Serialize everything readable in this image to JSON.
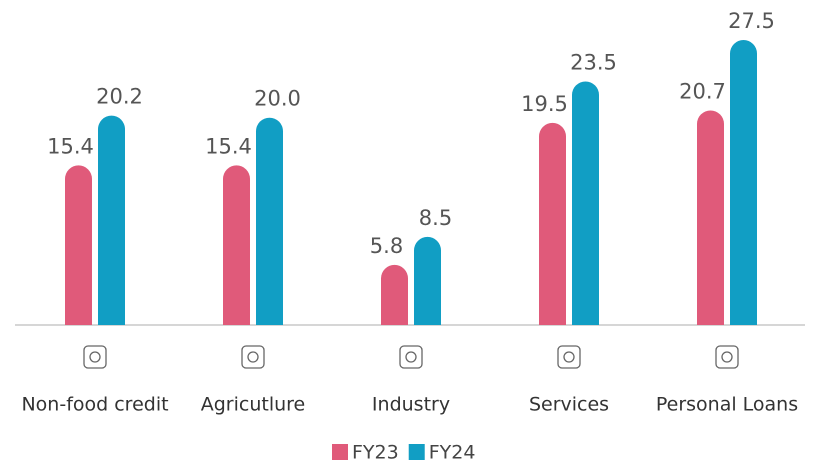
{
  "chart_data": {
    "type": "bar",
    "categories": [
      "Non-food credit",
      "Agricutlure",
      "Industry",
      "Services",
      "Personal Loans"
    ],
    "series": [
      {
        "name": "FY23",
        "color": "#e05a7a",
        "values": [
          15.4,
          15.4,
          5.8,
          19.5,
          20.7
        ],
        "value_labels": [
          "15.4",
          "15.4",
          "5.8",
          "19.5",
          "20.7"
        ]
      },
      {
        "name": "FY24",
        "color": "#119ec4",
        "values": [
          20.2,
          20.0,
          8.5,
          23.5,
          27.5
        ],
        "value_labels": [
          "20.2",
          "20.0",
          "8.5",
          "23.5",
          "27.5"
        ]
      }
    ]
  }
}
